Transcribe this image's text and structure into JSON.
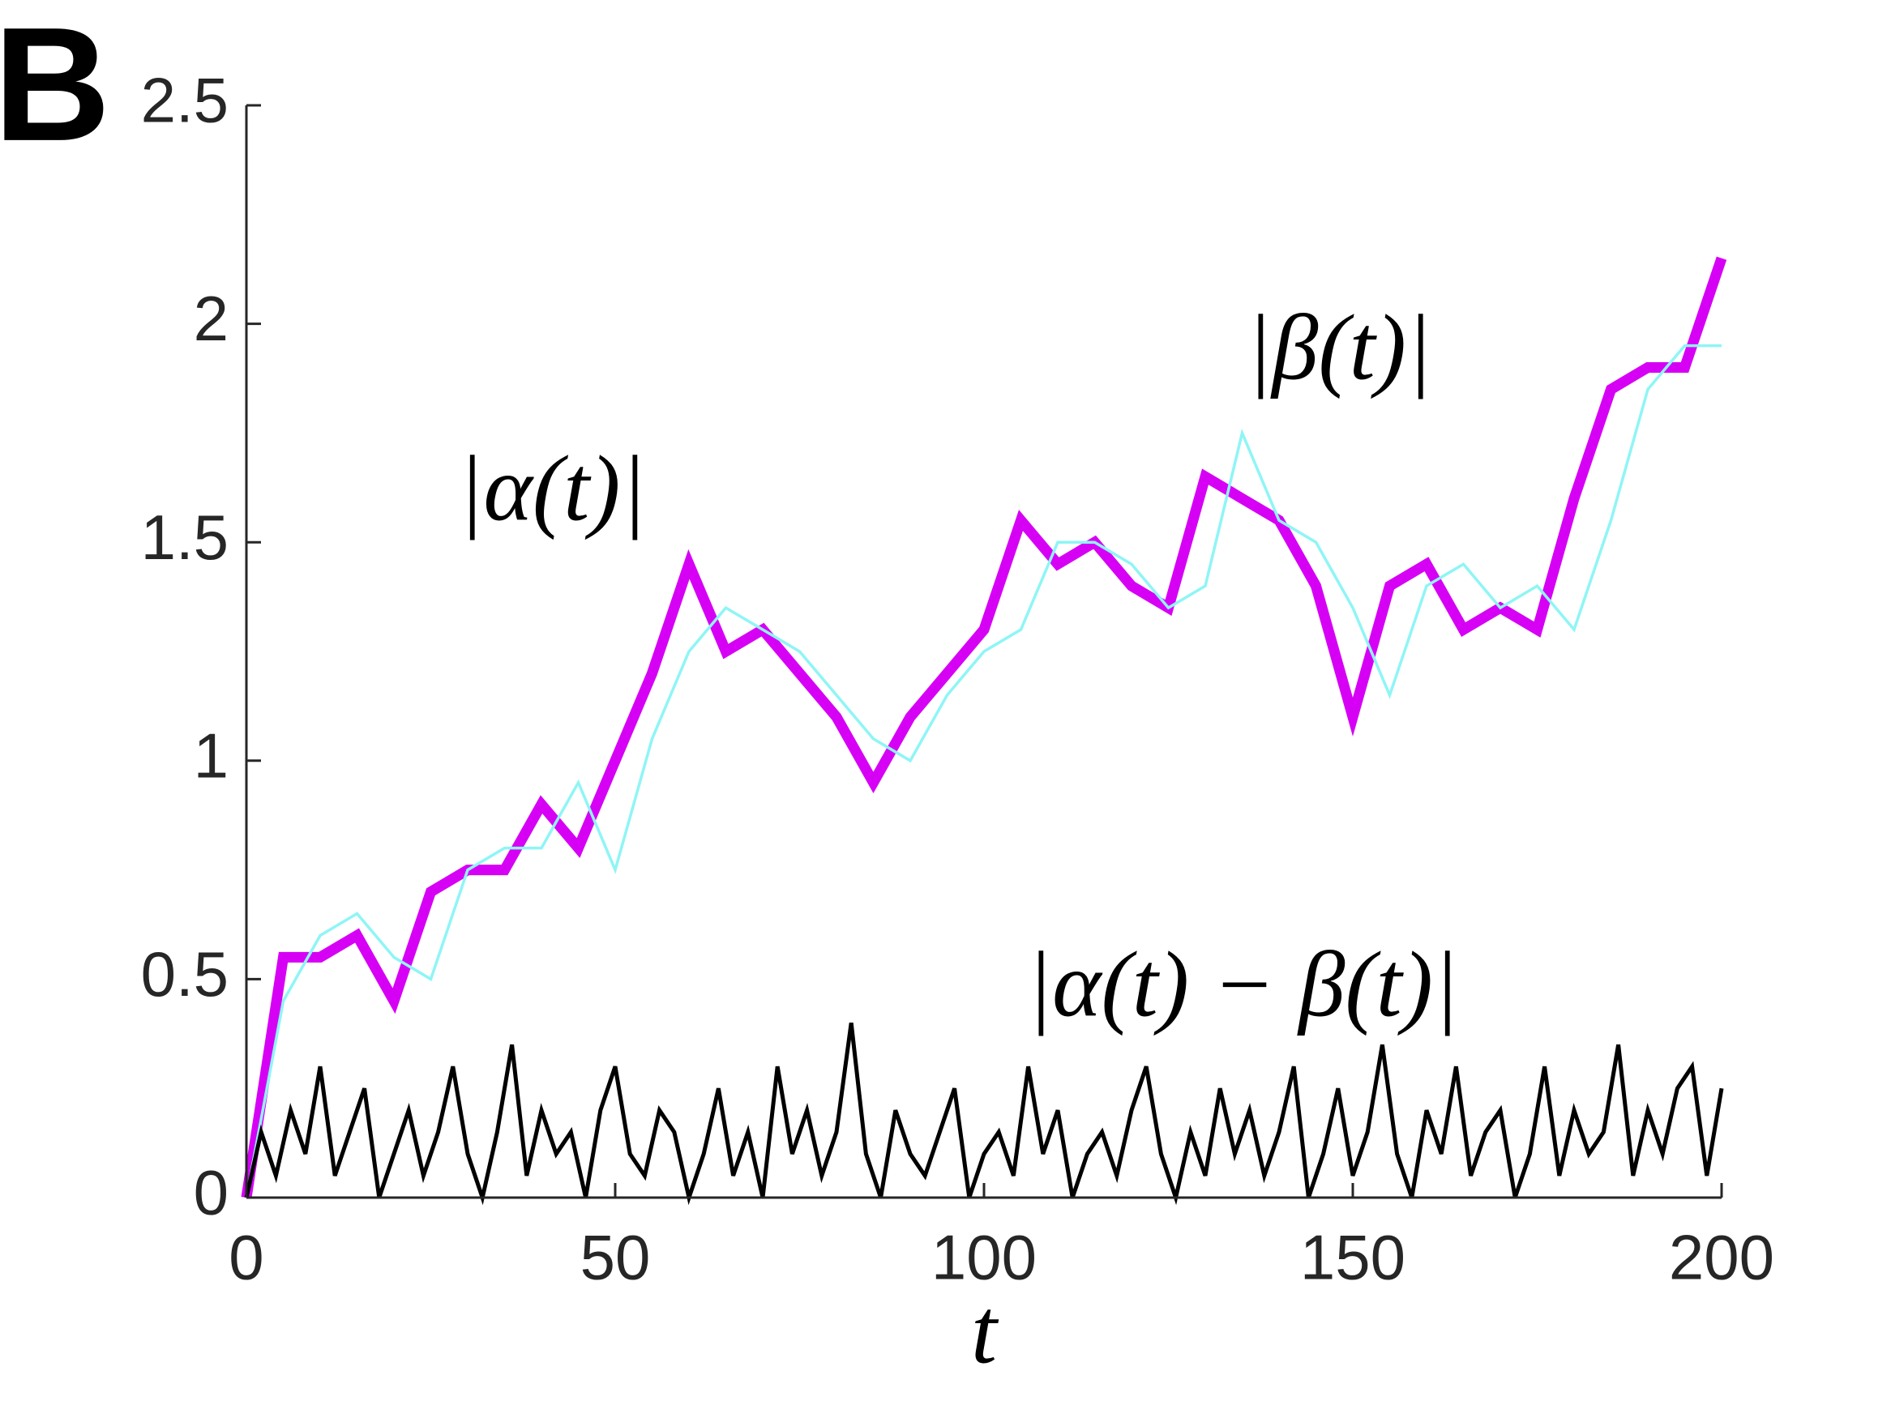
{
  "chart_data": {
    "type": "line",
    "panel_label": "B",
    "xlabel": "t",
    "xlim": [
      0,
      200
    ],
    "xticks": [
      0,
      50,
      100,
      150,
      200
    ],
    "ylim": [
      0,
      2.5
    ],
    "yticks": [
      0,
      0.5,
      1,
      1.5,
      2,
      2.5
    ],
    "series": [
      {
        "name": "|α(t)|",
        "color": "#d600f5",
        "x": [
          0,
          5,
          10,
          15,
          20,
          25,
          30,
          35,
          40,
          45,
          50,
          55,
          60,
          65,
          70,
          75,
          80,
          85,
          90,
          95,
          100,
          105,
          110,
          115,
          120,
          125,
          130,
          135,
          140,
          145,
          150,
          155,
          160,
          165,
          170,
          175,
          180,
          185,
          190,
          195,
          200
        ],
        "values": [
          0,
          0.55,
          0.55,
          0.6,
          0.45,
          0.7,
          0.75,
          0.75,
          0.9,
          0.8,
          1.0,
          1.2,
          1.45,
          1.25,
          1.3,
          1.2,
          1.1,
          0.95,
          1.1,
          1.2,
          1.3,
          1.55,
          1.45,
          1.5,
          1.4,
          1.35,
          1.65,
          1.6,
          1.55,
          1.4,
          1.1,
          1.4,
          1.45,
          1.3,
          1.35,
          1.3,
          1.6,
          1.85,
          1.9,
          1.9,
          2.15
        ]
      },
      {
        "name": "|β(t)|",
        "color": "#8ff5f5",
        "x": [
          0,
          5,
          10,
          15,
          20,
          25,
          30,
          35,
          40,
          45,
          50,
          55,
          60,
          65,
          70,
          75,
          80,
          85,
          90,
          95,
          100,
          105,
          110,
          115,
          120,
          125,
          130,
          135,
          140,
          145,
          150,
          155,
          160,
          165,
          170,
          175,
          180,
          185,
          190,
          195,
          200
        ],
        "values": [
          0,
          0.45,
          0.6,
          0.65,
          0.55,
          0.5,
          0.75,
          0.8,
          0.8,
          0.95,
          0.75,
          1.05,
          1.25,
          1.35,
          1.3,
          1.25,
          1.15,
          1.05,
          1.0,
          1.15,
          1.25,
          1.3,
          1.5,
          1.5,
          1.45,
          1.35,
          1.4,
          1.75,
          1.55,
          1.5,
          1.35,
          1.15,
          1.4,
          1.45,
          1.35,
          1.4,
          1.3,
          1.55,
          1.85,
          1.95,
          1.95
        ]
      },
      {
        "name": "|α(t) − β(t)|",
        "color": "#000000",
        "x": [
          0,
          2,
          4,
          6,
          8,
          10,
          12,
          14,
          16,
          18,
          20,
          22,
          24,
          26,
          28,
          30,
          32,
          34,
          36,
          38,
          40,
          42,
          44,
          46,
          48,
          50,
          52,
          54,
          56,
          58,
          60,
          62,
          64,
          66,
          68,
          70,
          72,
          74,
          76,
          78,
          80,
          82,
          84,
          86,
          88,
          90,
          92,
          94,
          96,
          98,
          100,
          102,
          104,
          106,
          108,
          110,
          112,
          114,
          116,
          118,
          120,
          122,
          124,
          126,
          128,
          130,
          132,
          134,
          136,
          138,
          140,
          142,
          144,
          146,
          148,
          150,
          152,
          154,
          156,
          158,
          160,
          162,
          164,
          166,
          168,
          170,
          172,
          174,
          176,
          178,
          180,
          182,
          184,
          186,
          188,
          190,
          192,
          194,
          196,
          198,
          200
        ],
        "values": [
          0,
          0.15,
          0.05,
          0.2,
          0.1,
          0.3,
          0.05,
          0.15,
          0.25,
          0,
          0.1,
          0.2,
          0.05,
          0.15,
          0.3,
          0.1,
          0,
          0.15,
          0.35,
          0.05,
          0.2,
          0.1,
          0.15,
          0,
          0.2,
          0.3,
          0.1,
          0.05,
          0.2,
          0.15,
          0,
          0.1,
          0.25,
          0.05,
          0.15,
          0,
          0.3,
          0.1,
          0.2,
          0.05,
          0.15,
          0.4,
          0.1,
          0,
          0.2,
          0.1,
          0.05,
          0.15,
          0.25,
          0,
          0.1,
          0.15,
          0.05,
          0.3,
          0.1,
          0.2,
          0,
          0.1,
          0.15,
          0.05,
          0.2,
          0.3,
          0.1,
          0,
          0.15,
          0.05,
          0.25,
          0.1,
          0.2,
          0.05,
          0.15,
          0.3,
          0,
          0.1,
          0.25,
          0.05,
          0.15,
          0.35,
          0.1,
          0,
          0.2,
          0.1,
          0.3,
          0.05,
          0.15,
          0.2,
          0,
          0.1,
          0.3,
          0.05,
          0.2,
          0.1,
          0.15,
          0.35,
          0.05,
          0.2,
          0.1,
          0.25,
          0.3,
          0.05,
          0.25
        ]
      }
    ]
  }
}
